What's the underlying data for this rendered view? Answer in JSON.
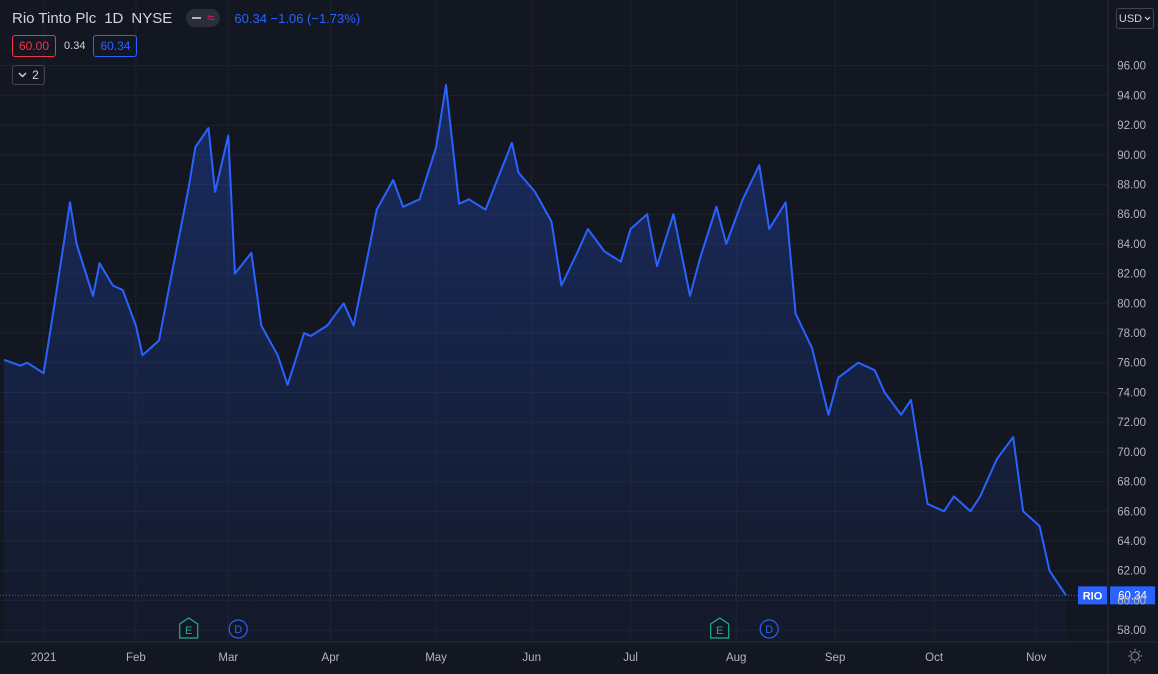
{
  "header": {
    "symbol_title": "Rio Tinto Plc",
    "interval": "1D",
    "exchange": "NYSE",
    "last_quote": "60.34 −1.06 (−1.73%)",
    "bid": "60.00",
    "spread": "0.34",
    "ask": "60.34",
    "indicators_count": "2"
  },
  "currency": "USD",
  "colors": {
    "background": "#131722",
    "line": "#2962ff",
    "bid_red": "#f23645",
    "grid": "#1e222d"
  },
  "price_label": {
    "ticker": "RIO",
    "value": "60.34"
  },
  "events": [
    {
      "type": "earnings",
      "letter": "E",
      "date": "2021-02-17"
    },
    {
      "type": "dividend",
      "letter": "D",
      "date": "2021-03-04"
    },
    {
      "type": "earnings",
      "letter": "E",
      "date": "2021-07-28"
    },
    {
      "type": "dividend",
      "letter": "D",
      "date": "2021-08-12"
    }
  ],
  "chart_data": {
    "type": "area",
    "title": "Rio Tinto Plc · 1D · NYSE",
    "xlabel": "",
    "ylabel": "",
    "grid": true,
    "ylim": [
      57.2,
      98.4
    ],
    "y_ticks": [
      "58.00",
      "60.00",
      "62.00",
      "64.00",
      "66.00",
      "68.00",
      "70.00",
      "72.00",
      "74.00",
      "76.00",
      "78.00",
      "80.00",
      "82.00",
      "84.00",
      "86.00",
      "88.00",
      "90.00",
      "92.00",
      "94.00",
      "96.00"
    ],
    "x_ticks": [
      {
        "label": "2021",
        "date": "2021-01-04"
      },
      {
        "label": "Feb",
        "date": "2021-02-01"
      },
      {
        "label": "Mar",
        "date": "2021-03-01"
      },
      {
        "label": "Apr",
        "date": "2021-04-01"
      },
      {
        "label": "May",
        "date": "2021-05-03"
      },
      {
        "label": "Jun",
        "date": "2021-06-01"
      },
      {
        "label": "Jul",
        "date": "2021-07-01"
      },
      {
        "label": "Aug",
        "date": "2021-08-02"
      },
      {
        "label": "Sep",
        "date": "2021-09-01"
      },
      {
        "label": "Oct",
        "date": "2021-10-01"
      },
      {
        "label": "Nov",
        "date": "2021-11-01"
      }
    ],
    "series": [
      {
        "x": [
          "2020-12-23",
          "2020-12-28",
          "2020-12-30",
          "2021-01-04",
          "2021-01-07",
          "2021-01-12",
          "2021-01-14",
          "2021-01-19",
          "2021-01-21",
          "2021-01-25",
          "2021-01-28",
          "2021-02-01",
          "2021-02-03",
          "2021-02-08",
          "2021-02-11",
          "2021-02-17",
          "2021-02-19",
          "2021-02-23",
          "2021-02-25",
          "2021-03-01",
          "2021-03-03",
          "2021-03-08",
          "2021-03-11",
          "2021-03-16",
          "2021-03-19",
          "2021-03-24",
          "2021-03-26",
          "2021-03-31",
          "2021-04-05",
          "2021-04-08",
          "2021-04-13",
          "2021-04-15",
          "2021-04-20",
          "2021-04-23",
          "2021-04-28",
          "2021-05-03",
          "2021-05-06",
          "2021-05-10",
          "2021-05-13",
          "2021-05-18",
          "2021-05-21",
          "2021-05-26",
          "2021-05-28",
          "2021-06-02",
          "2021-06-07",
          "2021-06-10",
          "2021-06-15",
          "2021-06-18",
          "2021-06-23",
          "2021-06-28",
          "2021-07-01",
          "2021-07-06",
          "2021-07-09",
          "2021-07-14",
          "2021-07-19",
          "2021-07-22",
          "2021-07-27",
          "2021-07-30",
          "2021-08-04",
          "2021-08-09",
          "2021-08-12",
          "2021-08-17",
          "2021-08-20",
          "2021-08-25",
          "2021-08-30",
          "2021-09-02",
          "2021-09-08",
          "2021-09-13",
          "2021-09-16",
          "2021-09-21",
          "2021-09-24",
          "2021-09-29",
          "2021-10-04",
          "2021-10-07",
          "2021-10-12",
          "2021-10-15",
          "2021-10-20",
          "2021-10-25",
          "2021-10-28",
          "2021-11-02",
          "2021-11-05",
          "2021-11-10"
        ],
        "values": [
          76.2,
          75.8,
          76.0,
          75.3,
          79.5,
          86.8,
          84.0,
          80.5,
          82.7,
          81.2,
          80.9,
          78.5,
          76.5,
          77.5,
          81.0,
          87.8,
          90.5,
          91.8,
          87.5,
          91.3,
          82.0,
          83.4,
          78.5,
          76.5,
          74.5,
          78.0,
          77.8,
          78.5,
          80.0,
          78.5,
          84.0,
          86.3,
          88.3,
          86.5,
          87.0,
          90.5,
          94.7,
          86.7,
          87.0,
          86.3,
          88.0,
          90.8,
          88.8,
          87.5,
          85.5,
          81.2,
          83.5,
          85.0,
          83.5,
          82.8,
          85.0,
          86.0,
          82.5,
          86.0,
          80.5,
          83.0,
          86.5,
          84.0,
          87.0,
          89.3,
          85.0,
          86.8,
          79.3,
          77.0,
          72.5,
          75.0,
          76.0,
          75.5,
          74.0,
          72.5,
          73.5,
          66.5,
          66.0,
          67.0,
          66.0,
          67.0,
          69.5,
          71.0,
          66.0,
          65.0,
          62.0,
          60.34
        ],
        "close": 60.34
      }
    ]
  }
}
